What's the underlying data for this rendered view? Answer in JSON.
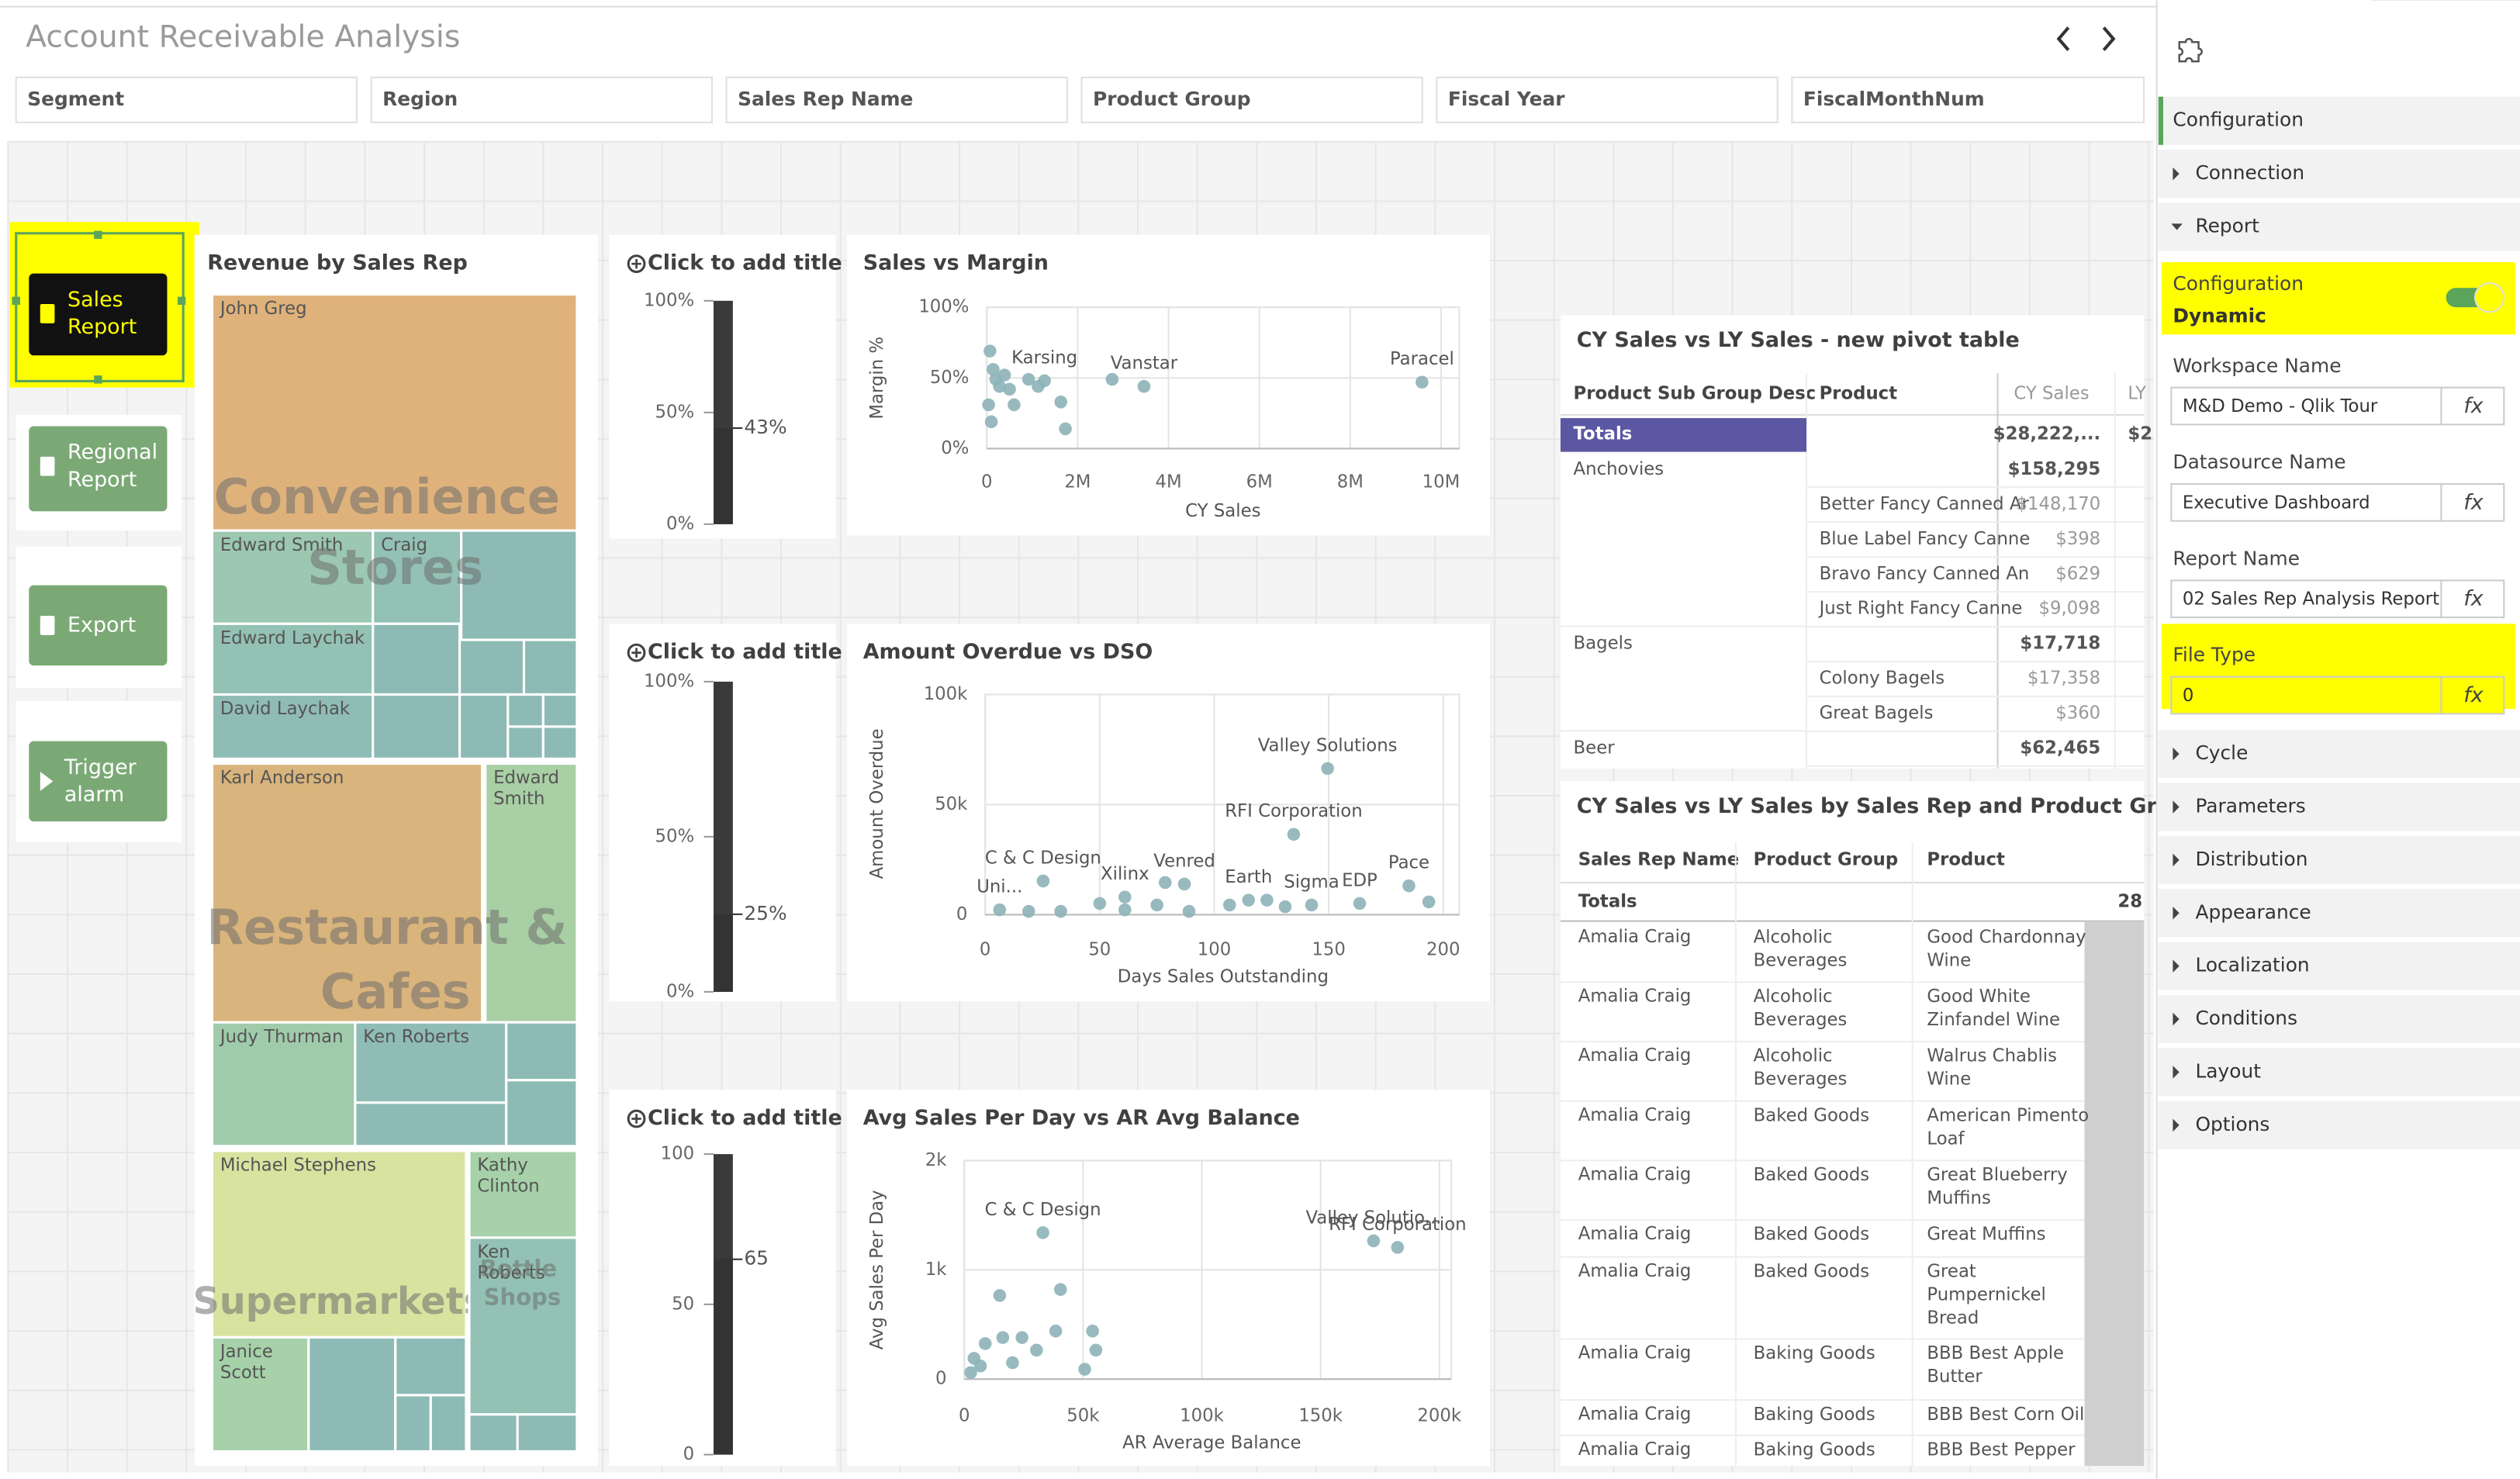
{
  "app": {
    "title": "Account Receivable Analysis"
  },
  "filters": [
    "Segment",
    "Region",
    "Sales Rep Name",
    "Product Group",
    "Fiscal Year",
    "FiscalMonthNum"
  ],
  "buttons": [
    "Sales Report",
    "Regional Report",
    "Export",
    "Trigger alarm"
  ],
  "treemap": {
    "title": "Revenue by Sales Rep",
    "groups": [
      {
        "name": "Convenience Stores",
        "items": [
          "John Greg",
          "Edward Smith",
          "Craig",
          "Edward Laychak",
          "David Laychak"
        ]
      },
      {
        "name": "Restaurant & Cafes",
        "items": [
          "Karl Anderson",
          "Edward Smith",
          "Judy Thurman",
          "Ken Roberts"
        ]
      },
      {
        "name": "Supermarkets",
        "items": [
          "Michael Stephens",
          "Janice Scott"
        ]
      },
      {
        "name": "Bottle Shops",
        "items": [
          "Kathy Clinton",
          "Ken Roberts"
        ]
      }
    ]
  },
  "gauges": [
    {
      "title": "Click to add title",
      "ylim": [
        0,
        100
      ],
      "yticks": [
        {
          "value": 100,
          "label": "100%"
        },
        {
          "value": 50,
          "label": "50%"
        },
        {
          "value": 0,
          "label": "0%"
        }
      ],
      "value": 43,
      "value_label": "43%"
    },
    {
      "title": "Click to add title",
      "ylim": [
        0,
        100
      ],
      "yticks": [
        {
          "value": 100,
          "label": "100%"
        },
        {
          "value": 50,
          "label": "50%"
        },
        {
          "value": 0,
          "label": "0%"
        }
      ],
      "value": 25,
      "value_label": "25%"
    },
    {
      "title": "Click to add title",
      "ylim": [
        0,
        100
      ],
      "yticks": [
        100,
        50,
        0
      ],
      "value": 65
    }
  ],
  "charts": [
    {
      "type": "scatter",
      "title": "Sales vs Margin",
      "x_label": "CY Sales",
      "y_label": "Margin %",
      "color": "#8db3b8",
      "xlim": [
        0,
        10400000
      ],
      "xticks": [
        0,
        {
          "value": 2000000,
          "label": "2M"
        },
        {
          "value": 4000000,
          "label": "4M"
        },
        {
          "value": 6000000,
          "label": "6M"
        },
        {
          "value": 8000000,
          "label": "8M"
        },
        {
          "value": 10000000,
          "label": "10M"
        }
      ],
      "ylim": [
        0,
        100
      ],
      "yticks": [
        {
          "value": 0,
          "label": "0%"
        },
        {
          "value": 50,
          "label": "50%"
        },
        {
          "value": 100,
          "label": "100%"
        }
      ],
      "x": [
        70000,
        140000,
        200000,
        280000,
        390000,
        500000,
        40000,
        100000,
        600000,
        920000,
        1270000,
        1130000,
        1630000,
        1730000,
        2760000,
        3460000,
        9580000
      ],
      "values": [
        69,
        56,
        49,
        44,
        52,
        42,
        31,
        19,
        31,
        49,
        48,
        44,
        33,
        14,
        49,
        44,
        47
      ],
      "labels": [
        null,
        null,
        null,
        null,
        null,
        null,
        null,
        null,
        null,
        null,
        "Karsing",
        null,
        null,
        null,
        null,
        "Vanstar",
        "Paracel"
      ]
    },
    {
      "type": "scatter",
      "title": "Amount Overdue vs DSO",
      "x_label": "Days Sales Outstanding",
      "y_label": "Amount Overdue",
      "color": "#8db3b8",
      "xlim": [
        0,
        207
      ],
      "xticks": [
        0,
        50,
        100,
        150,
        200
      ],
      "ylim": [
        0,
        100000
      ],
      "yticks": [
        0,
        {
          "value": 50000,
          "label": "50k"
        },
        {
          "value": 100000,
          "label": "100k"
        }
      ],
      "x": [
        149.5,
        134.7,
        25.3,
        87,
        61,
        115,
        142.5,
        163.5,
        185,
        6.3,
        78.6,
        50,
        75,
        106.7,
        123,
        131,
        193.7,
        19,
        33,
        61,
        89
      ],
      "values": [
        66400,
        36500,
        15300,
        13900,
        8000,
        6600,
        4400,
        5100,
        13100,
        2200,
        14600,
        5100,
        4400,
        4400,
        6600,
        3600,
        5800,
        1500,
        1500,
        2200,
        1500
      ],
      "labels": [
        "Valley Solutions",
        "RFI Corporation",
        "C & C Design",
        "Venred",
        "Xilinx",
        "Earth",
        "Sigma",
        "EDP",
        "Pace",
        "Uni...",
        null,
        null,
        null,
        null,
        null,
        null,
        null,
        null,
        null,
        null,
        null
      ]
    },
    {
      "type": "scatter",
      "title": "Avg Sales Per Day vs AR Avg Balance",
      "x_label": "AR Average Balance",
      "y_label": "Avg Sales Per Day",
      "color": "#8db3b8",
      "xlim": [
        0,
        205000
      ],
      "xticks": [
        0,
        {
          "value": 50000,
          "label": "50k"
        },
        {
          "value": 100000,
          "label": "100k"
        },
        {
          "value": 150000,
          "label": "150k"
        },
        {
          "value": 200000,
          "label": "200k"
        }
      ],
      "ylim": [
        0,
        2000
      ],
      "yticks": [
        0,
        {
          "value": 1000,
          "label": "1k"
        },
        {
          "value": 2000,
          "label": "2k"
        }
      ],
      "x": [
        33100,
        172300,
        182400,
        40500,
        14900,
        38500,
        54000,
        55400,
        16200,
        24300,
        8800,
        4100,
        6800,
        20300,
        2700,
        30400,
        50700
      ],
      "values": [
        1340,
        1265,
        1205,
        820,
        765,
        440,
        440,
        265,
        380,
        380,
        325,
        190,
        120,
        150,
        60,
        265,
        90
      ],
      "labels": [
        "C & C Design",
        "Valley Solutio...",
        "RFI Corporation",
        null,
        null,
        null,
        null,
        null,
        null,
        null,
        null,
        null,
        null,
        null,
        null,
        null,
        null
      ]
    }
  ],
  "pivot": {
    "title": "CY Sales vs LY Sales - new pivot table",
    "headers": [
      "Product Sub Group Desc",
      "Product",
      "CY Sales",
      "LY"
    ],
    "totals": {
      "label": "Totals",
      "cy": "$28,222,...",
      "ly": "$2"
    },
    "rows": [
      {
        "group": "Anchovies",
        "subtotal": "$158,295",
        "items": [
          {
            "product": "Better Fancy Canned Ar",
            "cy": "$148,170"
          },
          {
            "product": "Blue Label Fancy Canne",
            "cy": "$398"
          },
          {
            "product": "Bravo Fancy Canned An",
            "cy": "$629"
          },
          {
            "product": "Just Right Fancy Canne",
            "cy": "$9,098"
          }
        ]
      },
      {
        "group": "Bagels",
        "subtotal": "$17,718",
        "items": [
          {
            "product": "Colony Bagels",
            "cy": "$17,358"
          },
          {
            "product": "Great Bagels",
            "cy": "$360"
          }
        ]
      },
      {
        "group": "Beer",
        "subtotal": "$62,465",
        "items": []
      }
    ]
  },
  "table": {
    "title": "CY Sales vs LY Sales by Sales Rep and Product Group - n...",
    "headers": [
      "Sales Rep Name",
      "Product Group",
      "Product"
    ],
    "totals": {
      "label": "Totals",
      "value": "28"
    },
    "rows": [
      [
        "Amalia Craig",
        "Alcoholic Beverages",
        "Good Chardonnay Wine"
      ],
      [
        "Amalia Craig",
        "Alcoholic Beverages",
        "Good White Zinfandel Wine"
      ],
      [
        "Amalia Craig",
        "Alcoholic Beverages",
        "Walrus Chablis Wine"
      ],
      [
        "Amalia Craig",
        "Baked Goods",
        "American Pimento Loaf"
      ],
      [
        "Amalia Craig",
        "Baked Goods",
        "Great Blueberry Muffins"
      ],
      [
        "Amalia Craig",
        "Baked Goods",
        "Great Muffins"
      ],
      [
        "Amalia Craig",
        "Baked Goods",
        "Great Pumpernickel Bread"
      ],
      [
        "Amalia Craig",
        "Baking Goods",
        "BBB Best Apple Butter"
      ],
      [
        "Amalia Craig",
        "Baking Goods",
        "BBB Best Corn Oil"
      ],
      [
        "Amalia Craig",
        "Baking Goods",
        "BBB Best Pepper"
      ]
    ]
  },
  "panel": {
    "tab": "Configuration",
    "top_sections": [
      "Connection",
      "Report"
    ],
    "mode": {
      "label": "Configuration",
      "value": "Dynamic"
    },
    "function_icon": "fx",
    "fields": [
      {
        "label": "Workspace Name",
        "value": "M&D Demo - Qlik Tour"
      },
      {
        "label": "Datasource Name",
        "value": "Executive Dashboard"
      },
      {
        "label": "Report Name",
        "value": "02 Sales Rep Analysis Report"
      },
      {
        "label": "File Type",
        "value": "0"
      }
    ],
    "sections": [
      "Cycle",
      "Parameters",
      "Distribution",
      "Appearance",
      "Localization",
      "Conditions",
      "Layout",
      "Options"
    ]
  }
}
